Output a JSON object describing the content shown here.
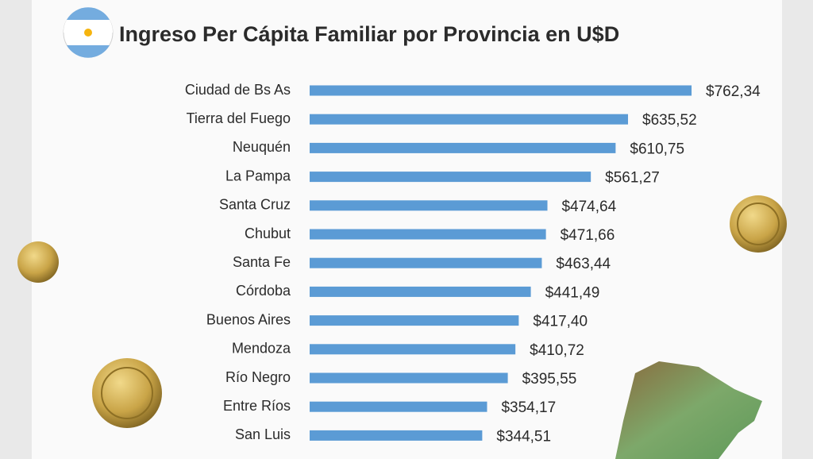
{
  "chart_data": {
    "type": "bar",
    "orientation": "horizontal",
    "title": "Ingreso Per Cápita Familiar por Provincia en U$D",
    "categories": [
      "Ciudad de Bs As",
      "Tierra del Fuego",
      "Neuquén",
      "La Pampa",
      "Santa Cruz",
      "Chubut",
      "Santa Fe",
      "Córdoba",
      "Buenos Aires",
      "Mendoza",
      "Río Negro",
      "Entre Ríos",
      "San Luis"
    ],
    "values": [
      762.34,
      635.52,
      610.75,
      561.27,
      474.64,
      471.66,
      463.44,
      441.49,
      417.4,
      410.72,
      395.55,
      354.17,
      344.51
    ],
    "value_labels": [
      "$762,34",
      "$635,52",
      "$610,75",
      "$561,27",
      "$474,64",
      "$471,66",
      "$463,44",
      "$441,49",
      "$417,40",
      "$410,72",
      "$395,55",
      "$354,17",
      "$344,51"
    ],
    "color": "#5b9bd5"
  }
}
